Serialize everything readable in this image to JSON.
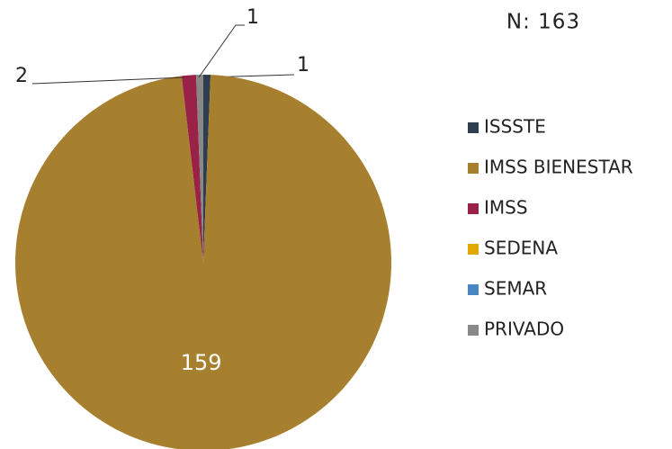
{
  "chart_data": {
    "type": "pie",
    "title": "N: 163",
    "categories": [
      "ISSSTE",
      "IMSS BIENESTAR",
      "IMSS",
      "SEDENA",
      "SEMAR",
      "PRIVADO"
    ],
    "values": [
      1,
      159,
      2,
      0,
      0,
      1
    ],
    "colors": [
      "#2e3e4e",
      "#a6802e",
      "#9b2247",
      "#e0a800",
      "#4a87c0",
      "#888888"
    ],
    "legend": "right"
  }
}
